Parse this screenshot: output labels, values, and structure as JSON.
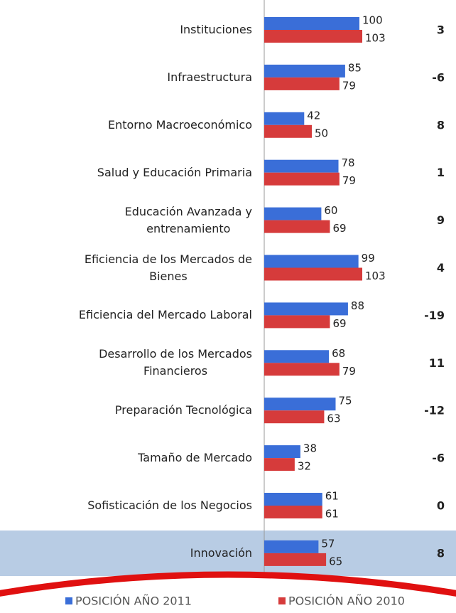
{
  "chart_data": {
    "type": "bar",
    "orientation": "horizontal",
    "categories": [
      "Instituciones",
      "Infraestructura",
      "Entorno Macroeconómico",
      "Salud y Educación Primaria",
      "Educación Avanzada y\nentrenamiento",
      "Eficiencia de los Mercados de\nBienes",
      "Eficiencia del Mercado Laboral",
      "Desarrollo de los Mercados\nFinancieros",
      "Preparación Tecnológica",
      "Tamaño de Mercado",
      "Sofisticación de los Negocios",
      "Innovación"
    ],
    "series": [
      {
        "name": "POSICIÓN AÑO 2011",
        "color": "#3a6ed8",
        "values": [
          100,
          85,
          42,
          78,
          60,
          99,
          88,
          68,
          75,
          38,
          61,
          57
        ]
      },
      {
        "name": "POSICIÓN AÑO 2010",
        "color": "#d63b3b",
        "values": [
          103,
          79,
          50,
          79,
          69,
          103,
          69,
          79,
          63,
          32,
          61,
          65
        ]
      }
    ],
    "differences": [
      3,
      -6,
      8,
      1,
      9,
      4,
      -19,
      11,
      -12,
      -6,
      0,
      8
    ],
    "xlim": [
      0,
      200
    ],
    "legend": "bottom"
  }
}
